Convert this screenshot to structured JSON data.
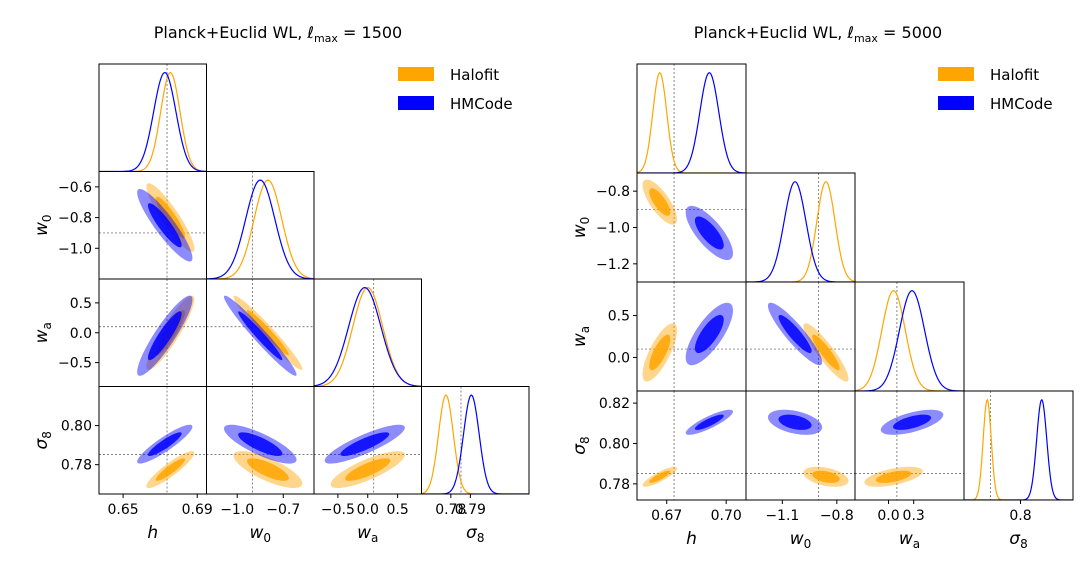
{
  "chart_data": [
    {
      "type": "triangle",
      "title": "Planck+Euclid WL, ℓmax = 1500",
      "title_main": "Planck+Euclid WL, ",
      "title_ell": "ℓ",
      "title_sub": "max",
      "title_tail": " = 1500",
      "legend_placement": "top-right",
      "params": [
        {
          "key": "h",
          "label": "h",
          "sub": "",
          "range": [
            0.637,
            0.695
          ],
          "ticks": [
            0.65,
            0.69
          ],
          "tick_labels": [
            "0.65",
            "0.69"
          ],
          "fiducial": 0.6737
        },
        {
          "key": "w0",
          "label": "w",
          "sub": "0",
          "range": [
            -1.2,
            -0.5
          ],
          "ticks": [
            -1.0,
            -0.7
          ],
          "tick_labels": [
            "−1.0",
            "−0.7"
          ],
          "y_ticks": [
            -1.0,
            -0.8,
            -0.6
          ],
          "y_tick_labels": [
            "−1.0",
            "−0.8",
            "−0.6"
          ],
          "fiducial": -0.9
        },
        {
          "key": "wa",
          "label": "w",
          "sub": "a",
          "range": [
            -0.9,
            0.9
          ],
          "ticks": [
            -0.5,
            0.0,
            0.5
          ],
          "tick_labels": [
            "−0.5",
            "0.0",
            "0.5"
          ],
          "y_ticks": [
            -0.5,
            0.0,
            0.5
          ],
          "y_tick_labels": [
            "−0.5",
            "0.0",
            "0.5"
          ],
          "fiducial": 0.1
        },
        {
          "key": "s8",
          "label": "σ",
          "sub": "8",
          "range": [
            0.765,
            0.82
          ],
          "ticks": [
            0.78,
            0.79
          ],
          "tick_labels": [
            "0.78",
            "0.79"
          ],
          "y_ticks": [
            0.78,
            0.8
          ],
          "y_tick_labels": [
            "0.78",
            "0.80"
          ],
          "fiducial": 0.7852
        }
      ],
      "series": [
        {
          "name": "Halofit",
          "color": "#ffa500",
          "mean": [
            0.6755,
            -0.8,
            0.0,
            0.7775
          ],
          "sigma": [
            0.0052,
            0.09,
            0.25,
            0.0038
          ],
          "corr": [
            [
              1,
              -0.9,
              0.9,
              0.9
            ],
            [
              -0.9,
              1,
              -0.97,
              -0.75
            ],
            [
              0.9,
              -0.97,
              1,
              0.8
            ],
            [
              0.9,
              -0.75,
              0.8,
              1
            ]
          ]
        },
        {
          "name": "HMCode",
          "color": "#0000ff",
          "mean": [
            0.6725,
            -0.85,
            -0.05,
            0.7905
          ],
          "sigma": [
            0.006,
            0.095,
            0.27,
            0.004
          ],
          "corr": [
            [
              1,
              -0.9,
              0.9,
              0.9
            ],
            [
              -0.9,
              1,
              -0.97,
              -0.8
            ],
            [
              0.9,
              -0.97,
              1,
              0.85
            ],
            [
              0.9,
              -0.8,
              0.85,
              1
            ]
          ]
        }
      ]
    },
    {
      "type": "triangle",
      "title": "Planck+Euclid WL, ℓmax = 5000",
      "title_main": "Planck+Euclid WL, ",
      "title_ell": "ℓ",
      "title_sub": "max",
      "title_tail": " = 5000",
      "legend_placement": "top-right",
      "params": [
        {
          "key": "h",
          "label": "h",
          "sub": "",
          "range": [
            0.655,
            0.71
          ],
          "ticks": [
            0.67,
            0.7
          ],
          "tick_labels": [
            "0.67",
            "0.70"
          ],
          "fiducial": 0.6737
        },
        {
          "key": "w0",
          "label": "w",
          "sub": "0",
          "range": [
            -1.3,
            -0.7
          ],
          "ticks": [
            -1.1,
            -0.8
          ],
          "tick_labels": [
            "−1.1",
            "−0.8"
          ],
          "y_ticks": [
            -1.2,
            -1.0,
            -0.8
          ],
          "y_tick_labels": [
            "−1.2",
            "−1.0",
            "−0.8"
          ],
          "fiducial": -0.9
        },
        {
          "key": "wa",
          "label": "w",
          "sub": "a",
          "range": [
            -0.4,
            0.9
          ],
          "ticks": [
            0.0,
            0.3
          ],
          "tick_labels": [
            "0.0",
            "0.3"
          ],
          "y_ticks": [
            0.0,
            0.5
          ],
          "y_tick_labels": [
            "0.0",
            "0.5"
          ],
          "fiducial": 0.1
        },
        {
          "key": "s8",
          "label": "σ",
          "sub": "8",
          "range": [
            0.772,
            0.826
          ],
          "ticks": [
            0.8
          ],
          "tick_labels": [
            "0.8"
          ],
          "y_ticks": [
            0.78,
            0.8,
            0.82
          ],
          "y_tick_labels": [
            "0.78",
            "0.80",
            "0.82"
          ],
          "fiducial": 0.7852
        }
      ],
      "series": [
        {
          "name": "Halofit",
          "color": "#ffa500",
          "mean": [
            0.6665,
            -0.86,
            0.06,
            0.7835
          ],
          "sigma": [
            0.0035,
            0.05,
            0.14,
            0.002
          ],
          "corr": [
            [
              1,
              -0.75,
              0.75,
              0.85
            ],
            [
              -0.75,
              1,
              -0.9,
              -0.4
            ],
            [
              0.75,
              -0.9,
              1,
              0.55
            ],
            [
              0.85,
              -0.4,
              0.55,
              1
            ]
          ]
        },
        {
          "name": "HMCode",
          "color": "#0000ff",
          "mean": [
            0.6915,
            -1.03,
            0.28,
            0.8105
          ],
          "sigma": [
            0.0048,
            0.06,
            0.15,
            0.0025
          ],
          "corr": [
            [
              1,
              -0.75,
              0.75,
              0.85
            ],
            [
              -0.75,
              1,
              -0.9,
              -0.4
            ],
            [
              0.75,
              -0.9,
              1,
              0.6
            ],
            [
              0.85,
              -0.4,
              0.6,
              1
            ]
          ]
        }
      ]
    }
  ]
}
